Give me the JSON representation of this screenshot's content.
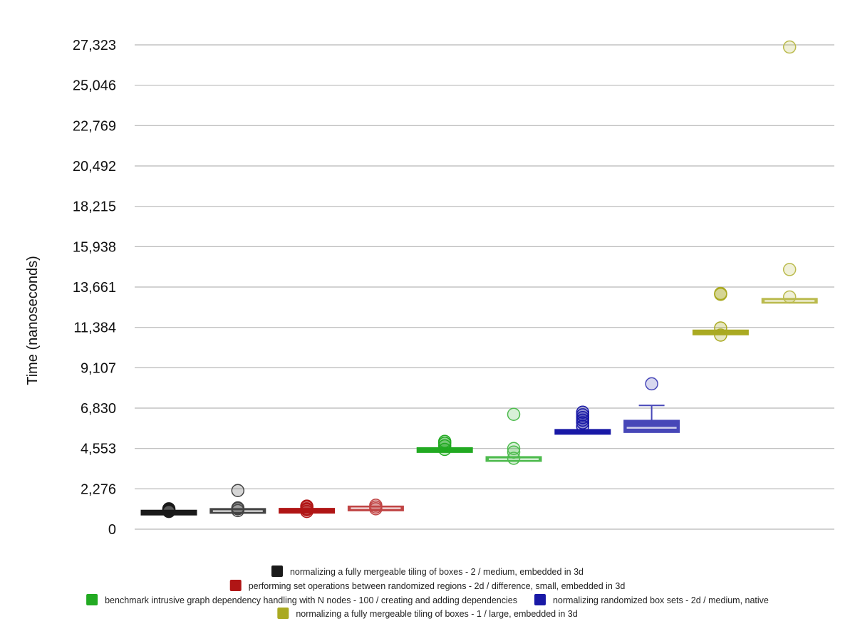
{
  "chart_data": {
    "type": "box",
    "title": "",
    "xlabel": "",
    "ylabel": "Time (nanoseconds)",
    "ylim": [
      0,
      27323
    ],
    "yticks": [
      "0",
      "2,276",
      "4,553",
      "6,830",
      "9,107",
      "11,384",
      "13,661",
      "15,938",
      "18,215",
      "20,492",
      "22,769",
      "25,046",
      "27,323"
    ],
    "ytick_values": [
      0,
      2276,
      4553,
      6830,
      9107,
      11384,
      13661,
      15938,
      18215,
      20492,
      22769,
      25046,
      27323
    ],
    "grid": true,
    "legend_position": "bottom",
    "series": [
      {
        "name": "normalizing a fully mergeable tiling of boxes - 2 / medium, embedded in 3d",
        "color": "#1a1a1a",
        "boxes": [
          {
            "variant": "base",
            "q1": 880,
            "median": 930,
            "q3": 990,
            "whisker_low": 870,
            "whisker_high": 1000,
            "outliers": [
              1000,
              1050,
              1100,
              1150
            ]
          },
          {
            "variant": "comparison",
            "q1": 960,
            "median": 1020,
            "q3": 1100,
            "whisker_low": 950,
            "whisker_high": 1120,
            "outliers": [
              1050,
              1150,
              1200,
              2180
            ]
          }
        ]
      },
      {
        "name": "performing set operations between randomized regions - 2d / difference, small, embedded in 3d",
        "color": "#b01515",
        "boxes": [
          {
            "variant": "base",
            "q1": 980,
            "median": 1040,
            "q3": 1100,
            "whisker_low": 970,
            "whisker_high": 1120,
            "outliers": [
              1000,
              1100,
              1150,
              1250,
              1300
            ]
          },
          {
            "variant": "comparison",
            "q1": 1090,
            "median": 1180,
            "q3": 1250,
            "whisker_low": 1080,
            "whisker_high": 1280,
            "outliers": [
              1150,
              1250,
              1350
            ]
          }
        ]
      },
      {
        "name": "benchmark intrusive graph dependency handling with N nodes - 100 / creating and adding dependencies",
        "color": "#22aa22",
        "boxes": [
          {
            "variant": "base",
            "q1": 4400,
            "median": 4460,
            "q3": 4530,
            "whisker_low": 4380,
            "whisker_high": 4560,
            "outliers": [
              4500,
              4700,
              4850,
              4950
            ]
          },
          {
            "variant": "comparison",
            "q1": 3900,
            "median": 3950,
            "q3": 4020,
            "whisker_low": 3880,
            "whisker_high": 4050,
            "outliers": [
              4000,
              4350,
              4550,
              6480
            ]
          }
        ]
      },
      {
        "name": "normalizing randomized box sets - 2d / medium, native",
        "color": "#1919a6",
        "boxes": [
          {
            "variant": "base",
            "q1": 5420,
            "median": 5490,
            "q3": 5560,
            "whisker_low": 5400,
            "whisker_high": 5600,
            "outliers": [
              5800,
              6000,
              6150,
              6300,
              6450,
              6600
            ]
          },
          {
            "variant": "comparison",
            "q1": 5450,
            "median": 5720,
            "q3": 6150,
            "whisker_low": 5450,
            "whisker_high": 6980,
            "outliers": [
              8200
            ]
          }
        ]
      },
      {
        "name": "normalizing a fully mergeable tiling of boxes - 1 / large, embedded in 3d",
        "color": "#aaaa22",
        "boxes": [
          {
            "variant": "base",
            "q1": 11030,
            "median": 11100,
            "q3": 11170,
            "whisker_low": 11000,
            "whisker_high": 11200,
            "outliers": [
              10950,
              11350,
              13250,
              13300
            ]
          },
          {
            "variant": "comparison",
            "q1": 12820,
            "median": 12880,
            "q3": 12950,
            "whisker_low": 12800,
            "whisker_high": 12980,
            "outliers": [
              13100,
              14650,
              27200
            ]
          }
        ]
      }
    ]
  }
}
